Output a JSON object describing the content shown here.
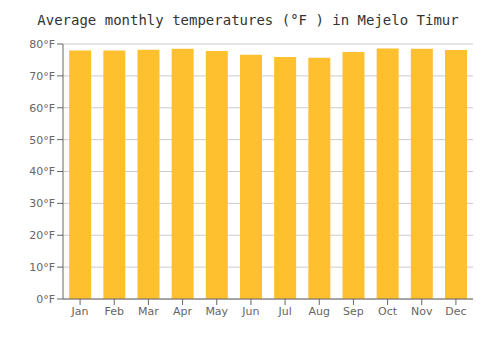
{
  "chart_data": {
    "type": "bar",
    "title": "Average monthly temperatures (°F ) in Mejelo Timur",
    "categories": [
      "Jan",
      "Feb",
      "Mar",
      "Apr",
      "May",
      "Jun",
      "Jul",
      "Aug",
      "Sep",
      "Oct",
      "Nov",
      "Dec"
    ],
    "values": [
      78.0,
      78.0,
      78.2,
      78.5,
      77.8,
      76.6,
      75.9,
      75.7,
      77.5,
      78.6,
      78.5,
      78.1
    ],
    "color": "#FFC030",
    "ylim": [
      0,
      80
    ],
    "yticks": [
      {
        "value": 0,
        "label": "0°F"
      },
      {
        "value": 10,
        "label": "10°F"
      },
      {
        "value": 20,
        "label": "20°F"
      },
      {
        "value": 30,
        "label": "30°F"
      },
      {
        "value": 40,
        "label": "40°F"
      },
      {
        "value": 50,
        "label": "50°F"
      },
      {
        "value": 60,
        "label": "60°F"
      },
      {
        "value": 70,
        "label": "70°F"
      },
      {
        "value": 80,
        "label": "80°F"
      }
    ],
    "grid": true
  }
}
